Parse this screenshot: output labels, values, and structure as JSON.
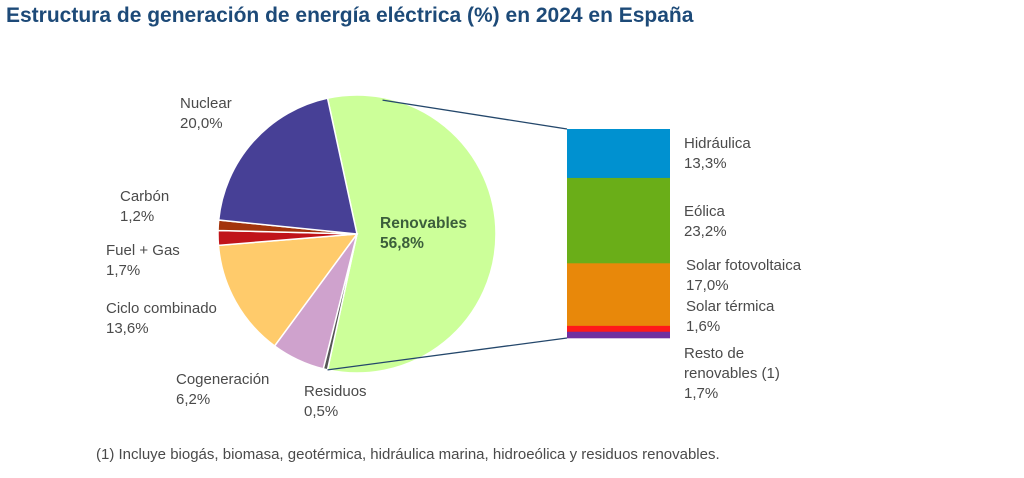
{
  "chart_data": {
    "type": "pie",
    "title": "Estructura de generación de energía eléctrica (%) en 2024 en España",
    "pie": {
      "slices": [
        {
          "label": "Renovables",
          "value": 56.8,
          "value_label": "56,8%",
          "color": "#ccff99"
        },
        {
          "label": "Residuos",
          "value": 0.5,
          "value_label": "0,5%",
          "color": "#555555"
        },
        {
          "label": "Cogeneración",
          "value": 6.2,
          "value_label": "6,2%",
          "color": "#cfa2cd"
        },
        {
          "label": "Ciclo combinado",
          "value": 13.6,
          "value_label": "13,6%",
          "color": "#ffcb6b"
        },
        {
          "label": "Fuel + Gas",
          "value": 1.7,
          "value_label": "1,7%",
          "color": "#c0141a"
        },
        {
          "label": "Carbón",
          "value": 1.2,
          "value_label": "1,2%",
          "color": "#a3340c"
        },
        {
          "label": "Nuclear",
          "value": 20.0,
          "value_label": "20,0%",
          "color": "#474096"
        }
      ]
    },
    "breakdown_bar": {
      "of": "Renovables",
      "segments": [
        {
          "label": "Hidráulica",
          "value": 13.3,
          "value_label": "13,3%",
          "color": "#0091d0"
        },
        {
          "label": "Eólica",
          "value": 23.2,
          "value_label": "23,2%",
          "color": "#6aae18"
        },
        {
          "label": "Solar fotovoltaica",
          "value": 17.0,
          "value_label": "17,0%",
          "color": "#e8880a"
        },
        {
          "label": "Solar térmica",
          "value": 1.6,
          "value_label": "1,6%",
          "color": "#ff1a1a"
        },
        {
          "label": "Resto de renovables (1)",
          "label_lines": [
            "Resto de",
            "renovables (1)"
          ],
          "value": 1.7,
          "value_label": "1,7%",
          "color": "#7030a0"
        }
      ]
    },
    "connector_color": "#24476b",
    "footnote": "(1) Incluye biogás, biomasa, geotérmica, hidráulica marina, hidroeólica y residuos renovables."
  }
}
